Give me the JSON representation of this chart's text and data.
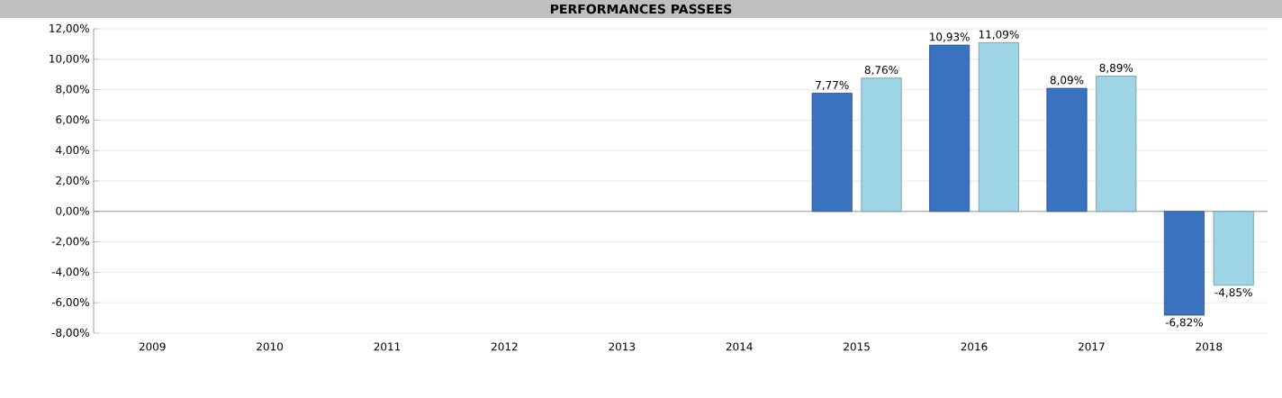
{
  "chart_data": {
    "type": "bar",
    "title": "PERFORMANCES PASSEES",
    "categories": [
      "2009",
      "2010",
      "2011",
      "2012",
      "2013",
      "2014",
      "2015",
      "2016",
      "2017",
      "2018"
    ],
    "series": [
      {
        "color": "#3a72c0",
        "values": [
          null,
          null,
          null,
          null,
          null,
          null,
          7.77,
          10.93,
          8.09,
          -6.82
        ],
        "value_labels": [
          null,
          null,
          null,
          null,
          null,
          null,
          "7,77%",
          "10,93%",
          "8,09%",
          "-6,82%"
        ]
      },
      {
        "color": "#9dd5e6",
        "values": [
          null,
          null,
          null,
          null,
          null,
          null,
          8.76,
          11.09,
          8.89,
          -4.85
        ],
        "value_labels": [
          null,
          null,
          null,
          null,
          null,
          null,
          "8,76%",
          "11,09%",
          "8,89%",
          "-4,85%"
        ]
      }
    ],
    "ylim": [
      -8,
      12
    ],
    "yticks": [
      {
        "value": -8,
        "label": "-8,00%"
      },
      {
        "value": -6,
        "label": "-6,00%"
      },
      {
        "value": -4,
        "label": "-4,00%"
      },
      {
        "value": -2,
        "label": "-2,00%"
      },
      {
        "value": 0,
        "label": "0,00%"
      },
      {
        "value": 2,
        "label": "2,00%"
      },
      {
        "value": 4,
        "label": "4,00%"
      },
      {
        "value": 6,
        "label": "6,00%"
      },
      {
        "value": 8,
        "label": "8,00%"
      },
      {
        "value": 10,
        "label": "10,00%"
      },
      {
        "value": 12,
        "label": "12,00%"
      }
    ],
    "grid": "y"
  }
}
